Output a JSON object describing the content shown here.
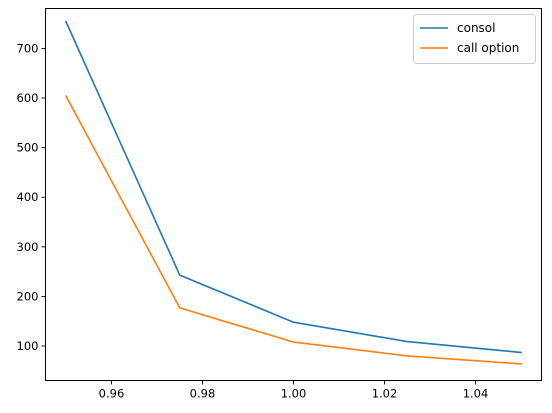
{
  "chart_data": {
    "type": "line",
    "title": "",
    "xlabel": "",
    "ylabel": "",
    "x": [
      0.95,
      0.975,
      1.0,
      1.025,
      1.05
    ],
    "xlim": [
      0.9455,
      1.0545
    ],
    "ylim": [
      30.5,
      780.5
    ],
    "x_ticks": [
      0.96,
      0.98,
      1.0,
      1.02,
      1.04
    ],
    "x_tick_labels": [
      "0.96",
      "0.98",
      "1.00",
      "1.02",
      "1.04"
    ],
    "y_ticks": [
      100,
      200,
      300,
      400,
      500,
      600,
      700
    ],
    "y_tick_labels": [
      "100",
      "200",
      "300",
      "400",
      "500",
      "600",
      "700"
    ],
    "grid": false,
    "legend_position": "upper right",
    "series": [
      {
        "name": "consol",
        "color": "#1f77b4",
        "values": [
          754,
          243,
          148,
          109,
          87
        ]
      },
      {
        "name": "call option",
        "color": "#ff7f0e",
        "values": [
          604,
          177,
          108,
          80,
          64
        ]
      }
    ]
  }
}
